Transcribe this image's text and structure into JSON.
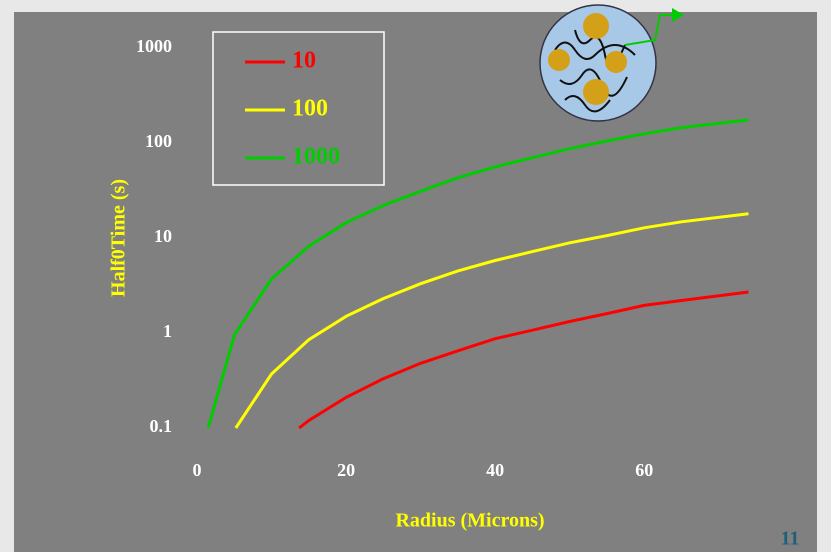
{
  "chart_data": {
    "type": "line",
    "x_label": "Radius (Microns)",
    "y_label": "Half0Time (s)",
    "xlim": [
      0,
      75
    ],
    "xticks": [
      0,
      20,
      40,
      60
    ],
    "ylim": [
      0.1,
      1000
    ],
    "yticks": [
      0.1,
      1,
      10,
      100,
      1000
    ],
    "log_y": true,
    "grid": false,
    "legend": "upper left",
    "series": [
      {
        "name": "10",
        "color": "#ff0000",
        "x": [
          13.7,
          15,
          20,
          25,
          30,
          35,
          40,
          45,
          50,
          55,
          60,
          65,
          74
        ],
        "values": [
          0.1,
          0.12,
          0.21,
          0.33,
          0.48,
          0.65,
          0.87,
          1.07,
          1.32,
          1.6,
          1.95,
          2.2,
          2.7
        ]
      },
      {
        "name": "100",
        "color": "#ffff00",
        "x": [
          5.2,
          10,
          15,
          20,
          25,
          30,
          35,
          40,
          45,
          50,
          55,
          60,
          65,
          74
        ],
        "values": [
          0.1,
          0.37,
          0.85,
          1.5,
          2.3,
          3.3,
          4.5,
          5.8,
          7.2,
          8.9,
          10.6,
          12.8,
          14.8,
          18
        ]
      },
      {
        "name": "1000",
        "color": "#00cc00",
        "x": [
          1.5,
          5,
          10,
          15,
          20,
          25,
          30,
          35,
          40,
          45,
          50,
          55,
          60,
          65,
          74
        ],
        "values": [
          0.1,
          0.95,
          3.7,
          8.2,
          14.5,
          22,
          31,
          43,
          56,
          70,
          87,
          105,
          125,
          145,
          175
        ]
      }
    ]
  },
  "slide_number": "11"
}
